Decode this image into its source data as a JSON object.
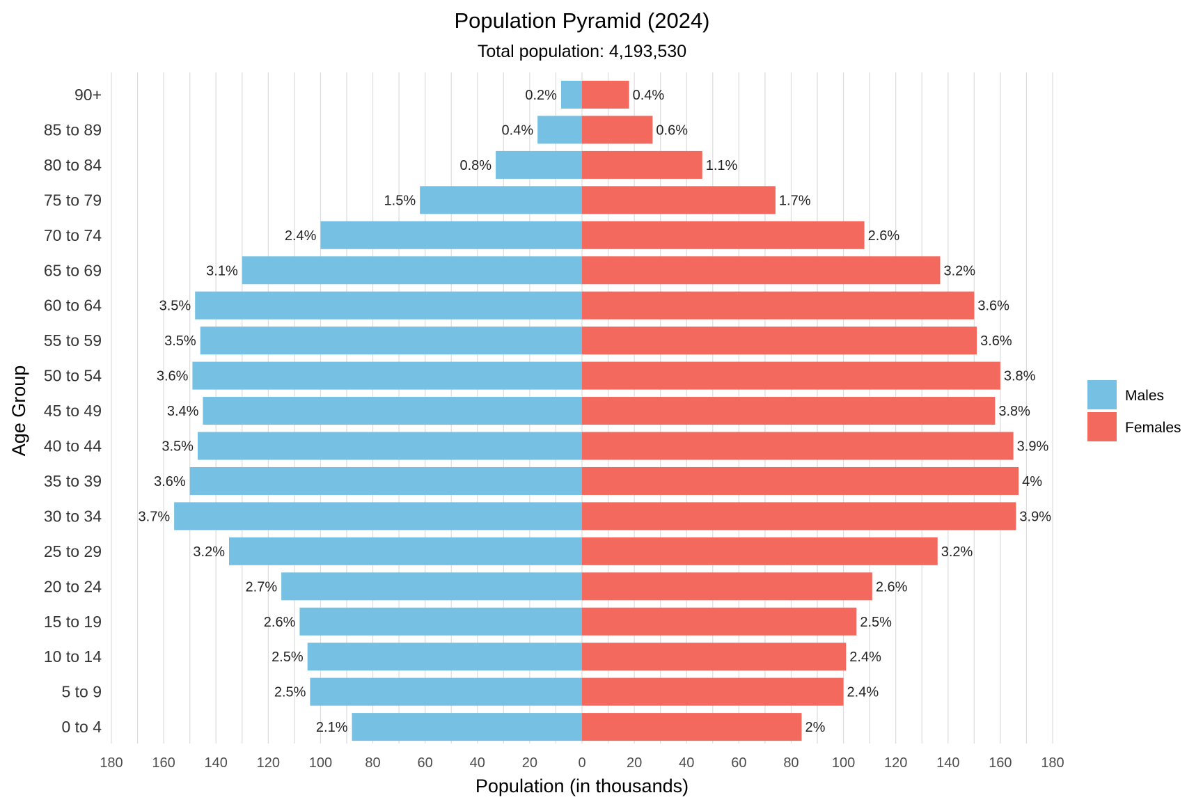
{
  "chart_data": {
    "type": "bar",
    "orientation": "horizontal",
    "title": "Population Pyramid (2024)",
    "subtitle": "Total population: 4,193,530",
    "xlabel": "Population (in thousands)",
    "ylabel": "Age Group",
    "xlim": [
      -180,
      180
    ],
    "x_ticks": [
      -180,
      -160,
      -140,
      -120,
      -100,
      -80,
      -60,
      -40,
      -20,
      0,
      20,
      40,
      60,
      80,
      100,
      120,
      140,
      160,
      180
    ],
    "x_tick_labels": [
      "180",
      "160",
      "140",
      "120",
      "100",
      "80",
      "60",
      "40",
      "20",
      "0",
      "20",
      "40",
      "60",
      "80",
      "100",
      "120",
      "140",
      "160",
      "180"
    ],
    "grid": true,
    "legend_position": "right",
    "categories": [
      "90+",
      "85 to 89",
      "80 to 84",
      "75 to 79",
      "70 to 74",
      "65 to 69",
      "60 to 64",
      "55 to 59",
      "50 to 54",
      "45 to 49",
      "40 to 44",
      "35 to 39",
      "30 to 34",
      "25 to 29",
      "20 to 24",
      "15 to 19",
      "10 to 14",
      "5 to 9",
      "0 to 4"
    ],
    "series": [
      {
        "name": "Males",
        "color": "#76C1E3",
        "values": [
          8,
          17,
          33,
          62,
          100,
          130,
          148,
          146,
          149,
          145,
          147,
          150,
          156,
          135,
          115,
          108,
          105,
          104,
          88
        ],
        "labels": [
          "0.2%",
          "0.4%",
          "0.8%",
          "1.5%",
          "2.4%",
          "3.1%",
          "3.5%",
          "3.5%",
          "3.6%",
          "3.4%",
          "3.5%",
          "3.6%",
          "3.7%",
          "3.2%",
          "2.7%",
          "2.6%",
          "2.5%",
          "2.5%",
          "2.1%"
        ]
      },
      {
        "name": "Females",
        "color": "#F4695E",
        "values": [
          18,
          27,
          46,
          74,
          108,
          137,
          150,
          151,
          160,
          158,
          165,
          167,
          166,
          136,
          111,
          105,
          101,
          100,
          84
        ],
        "labels": [
          "0.4%",
          "0.6%",
          "1.1%",
          "1.7%",
          "2.6%",
          "3.2%",
          "3.6%",
          "3.6%",
          "3.8%",
          "3.8%",
          "3.9%",
          "4%",
          "3.9%",
          "3.2%",
          "2.6%",
          "2.5%",
          "2.4%",
          "2.4%",
          "2%"
        ]
      }
    ]
  }
}
